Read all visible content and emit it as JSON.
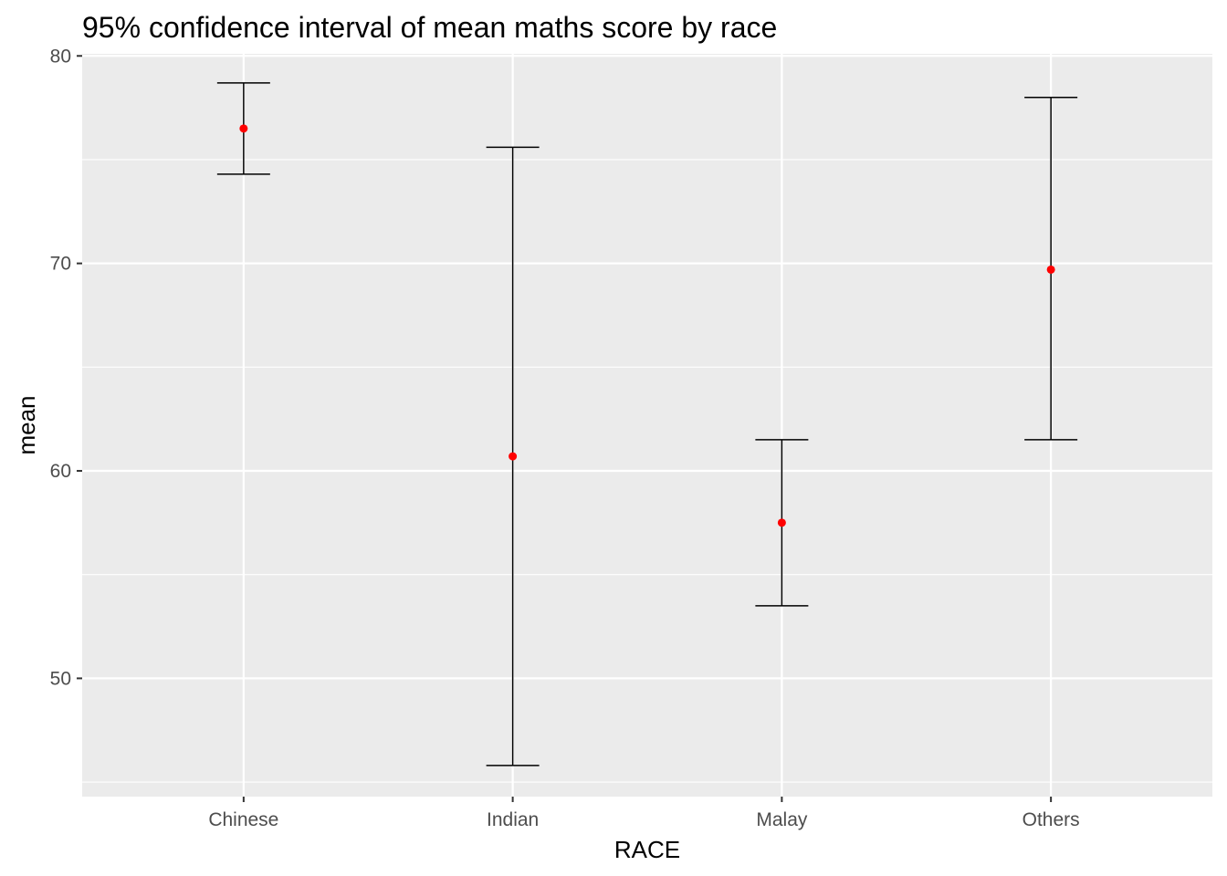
{
  "chart_data": {
    "type": "errorbar",
    "title": "95% confidence interval of mean maths score by race",
    "xlabel": "RACE",
    "ylabel": "mean",
    "categories": [
      "Chinese",
      "Indian",
      "Malay",
      "Others"
    ],
    "mean": [
      76.5,
      60.7,
      57.5,
      69.7
    ],
    "lower": [
      74.3,
      45.8,
      53.5,
      61.5
    ],
    "upper": [
      78.7,
      75.6,
      61.5,
      78.0
    ],
    "ylim": [
      44.3,
      80.1
    ],
    "yticks": [
      50,
      60,
      70,
      80
    ],
    "yticks_minor": [
      45,
      55,
      65,
      75
    ],
    "grid": true,
    "point_color": "#ff0000",
    "bar_color": "#000000",
    "panel_background": "#ebebeb",
    "grid_color": "#ffffff"
  }
}
